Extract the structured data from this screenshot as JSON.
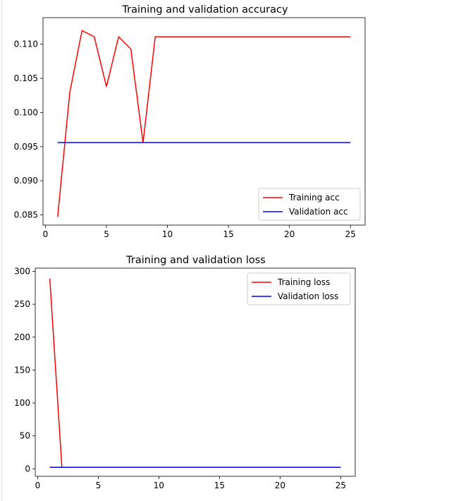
{
  "chart_data": [
    {
      "type": "line",
      "title": "Training and validation accuracy",
      "xlabel": "",
      "ylabel": "",
      "xlim": [
        -0.2,
        26.2
      ],
      "ylim": [
        0.0835,
        0.1139
      ],
      "xticks": [
        0,
        5,
        10,
        15,
        20,
        25
      ],
      "yticks": [
        0.085,
        0.09,
        0.095,
        0.1,
        0.105,
        0.11
      ],
      "ytick_labels": [
        "0.085",
        "0.090",
        "0.095",
        "0.100",
        "0.105",
        "0.110"
      ],
      "legend_position": "lower-right",
      "grid": false,
      "x": [
        1,
        2,
        3,
        4,
        5,
        6,
        7,
        8,
        9,
        10,
        11,
        12,
        13,
        14,
        15,
        16,
        17,
        18,
        19,
        20,
        21,
        22,
        23,
        24,
        25
      ],
      "series": [
        {
          "name": "Training acc",
          "color": "#ff0000",
          "values": [
            0.0847,
            0.103,
            0.112,
            0.1111,
            0.1038,
            0.1111,
            0.1093,
            0.0956,
            0.1111,
            0.1111,
            0.1111,
            0.1111,
            0.1111,
            0.1111,
            0.1111,
            0.1111,
            0.1111,
            0.1111,
            0.1111,
            0.1111,
            0.1111,
            0.1111,
            0.1111,
            0.1111,
            0.1111
          ]
        },
        {
          "name": "Validation acc",
          "color": "#0000ff",
          "values": [
            0.0956,
            0.0956,
            0.0956,
            0.0956,
            0.0956,
            0.0956,
            0.0956,
            0.0956,
            0.0956,
            0.0956,
            0.0956,
            0.0956,
            0.0956,
            0.0956,
            0.0956,
            0.0956,
            0.0956,
            0.0956,
            0.0956,
            0.0956,
            0.0956,
            0.0956,
            0.0956,
            0.0956,
            0.0956
          ]
        }
      ]
    },
    {
      "type": "line",
      "title": "Training and validation loss",
      "xlabel": "",
      "ylabel": "",
      "xlim": [
        -0.2,
        26.2
      ],
      "ylim": [
        -11.4,
        304.8
      ],
      "xticks": [
        0,
        5,
        10,
        15,
        20,
        25
      ],
      "yticks": [
        0,
        50,
        100,
        150,
        200,
        250,
        300
      ],
      "ytick_labels": [
        "0",
        "50",
        "100",
        "150",
        "200",
        "250",
        "300"
      ],
      "legend_position": "upper-right",
      "grid": false,
      "x": [
        1,
        2,
        3,
        4,
        5,
        6,
        7,
        8,
        9,
        10,
        11,
        12,
        13,
        14,
        15,
        16,
        17,
        18,
        19,
        20,
        21,
        22,
        23,
        24,
        25
      ],
      "series": [
        {
          "name": "Training loss",
          "color": "#ff0000",
          "values": [
            289,
            2.3,
            2.3,
            2.3,
            2.3,
            2.3,
            2.3,
            2.3,
            2.3,
            2.3,
            2.3,
            2.3,
            2.3,
            2.3,
            2.3,
            2.3,
            2.3,
            2.3,
            2.3,
            2.3,
            2.3,
            2.3,
            2.3,
            2.3,
            2.3
          ]
        },
        {
          "name": "Validation loss",
          "color": "#0000ff",
          "values": [
            2.3,
            2.3,
            2.3,
            2.3,
            2.3,
            2.3,
            2.3,
            2.3,
            2.3,
            2.3,
            2.3,
            2.3,
            2.3,
            2.3,
            2.3,
            2.3,
            2.3,
            2.3,
            2.3,
            2.3,
            2.3,
            2.3,
            2.3,
            2.3,
            2.3
          ]
        }
      ]
    }
  ]
}
